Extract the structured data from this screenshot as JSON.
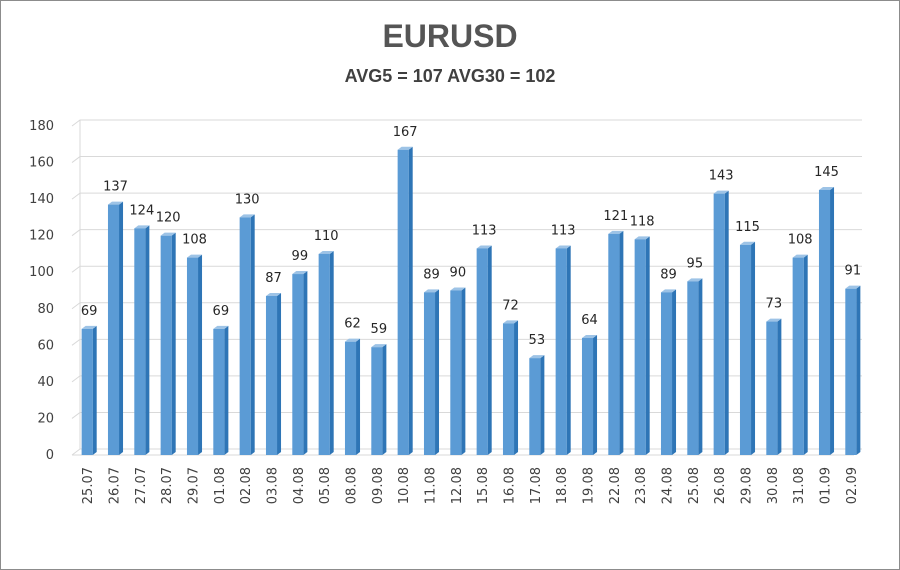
{
  "chart_data": {
    "type": "bar",
    "title": "EURUSD",
    "subtitle": "AVG5 = 107 AVG30 = 102",
    "xlabel": "",
    "ylabel": "",
    "ylim": [
      0,
      180
    ],
    "yticks": [
      0,
      20,
      40,
      60,
      80,
      100,
      120,
      140,
      160,
      180
    ],
    "grid": true,
    "legend": "none",
    "bar_color": "#5b9bd5",
    "bar_dark_color": "#2e75b6",
    "categories": [
      "25.07",
      "26.07",
      "27.07",
      "28.07",
      "29.07",
      "01.08",
      "02.08",
      "03.08",
      "04.08",
      "05.08",
      "08.08",
      "09.08",
      "10.08",
      "11.08",
      "12.08",
      "15.08",
      "16.08",
      "17.08",
      "18.08",
      "19.08",
      "22.08",
      "23.08",
      "24.08",
      "25.08",
      "26.08",
      "29.08",
      "30.08",
      "31.08",
      "01.09",
      "02.09"
    ],
    "values": [
      69,
      137,
      124,
      120,
      108,
      69,
      130,
      87,
      99,
      110,
      62,
      59,
      167,
      89,
      90,
      113,
      72,
      53,
      113,
      64,
      121,
      118,
      89,
      95,
      143,
      115,
      73,
      108,
      145,
      91
    ]
  }
}
